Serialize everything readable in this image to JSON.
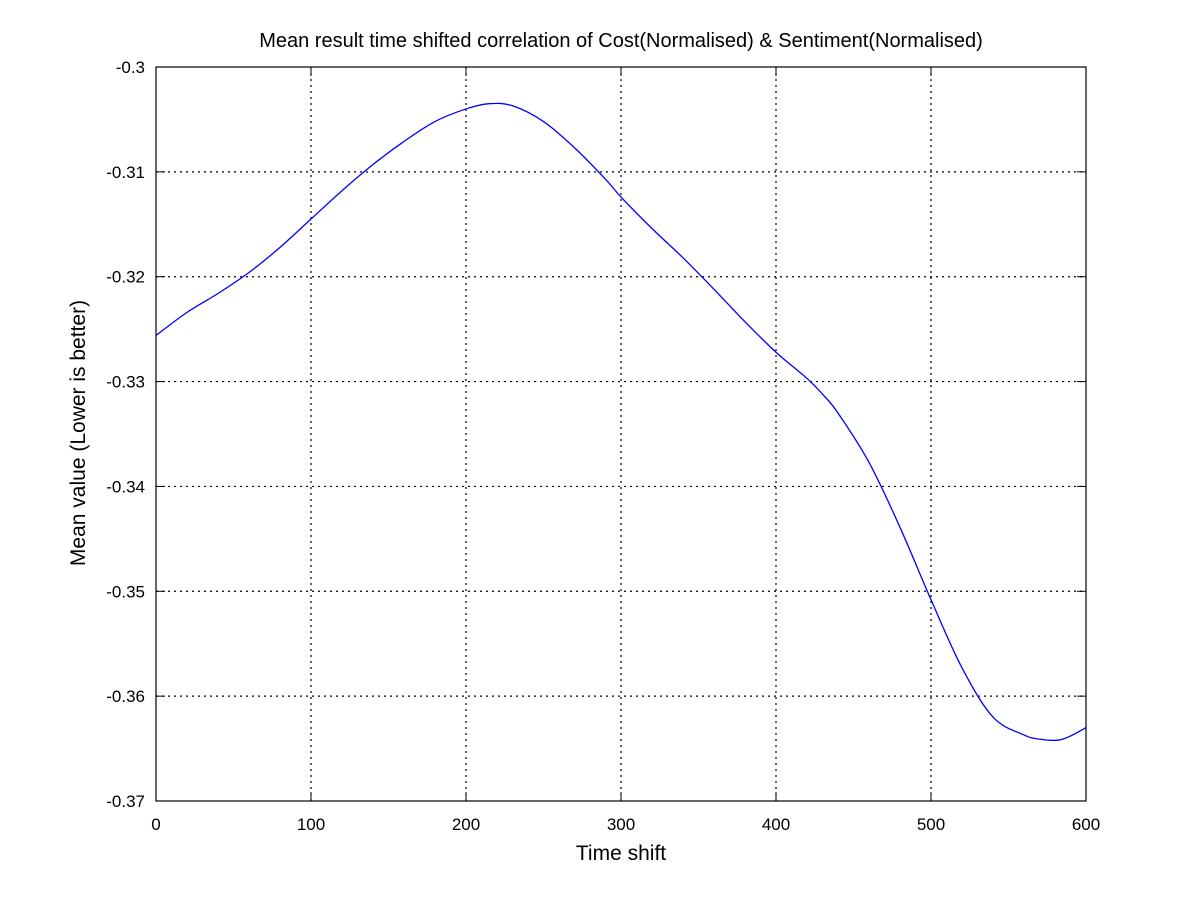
{
  "chart_data": {
    "type": "line",
    "title": "Mean result time shifted correlation of Cost(Normalised) & Sentiment(Normalised)",
    "xlabel": "Time shift",
    "ylabel": "Mean value (Lower is better)",
    "xlim": [
      0,
      600
    ],
    "ylim": [
      -0.37,
      -0.3
    ],
    "xticks": [
      0,
      100,
      200,
      300,
      400,
      500,
      600
    ],
    "xtick_labels": [
      "0",
      "100",
      "200",
      "300",
      "400",
      "500",
      "600"
    ],
    "yticks": [
      -0.3,
      -0.31,
      -0.32,
      -0.33,
      -0.34,
      -0.35,
      -0.36,
      -0.37
    ],
    "ytick_labels": [
      "-0.3",
      "-0.31",
      "-0.32",
      "-0.33",
      "-0.34",
      "-0.35",
      "-0.36",
      "-0.37"
    ],
    "grid": true,
    "grid_style": "dotted",
    "series": [
      {
        "color": "#0000ff",
        "x": [
          0,
          20,
          40,
          60,
          80,
          100,
          120,
          140,
          160,
          180,
          200,
          215,
          230,
          250,
          270,
          290,
          300,
          320,
          340,
          360,
          380,
          400,
          420,
          430,
          440,
          460,
          480,
          500,
          520,
          540,
          560,
          570,
          582,
          590,
          600
        ],
        "y": [
          -0.3256,
          -0.3234,
          -0.3216,
          -0.3196,
          -0.3172,
          -0.3145,
          -0.3118,
          -0.3093,
          -0.3071,
          -0.3052,
          -0.304,
          -0.3035,
          -0.3037,
          -0.3052,
          -0.3077,
          -0.3107,
          -0.3124,
          -0.3154,
          -0.3182,
          -0.3212,
          -0.3243,
          -0.3272,
          -0.3297,
          -0.3312,
          -0.333,
          -0.3377,
          -0.3439,
          -0.3508,
          -0.3573,
          -0.362,
          -0.3637,
          -0.3641,
          -0.3642,
          -0.3638,
          -0.363
        ]
      }
    ]
  }
}
